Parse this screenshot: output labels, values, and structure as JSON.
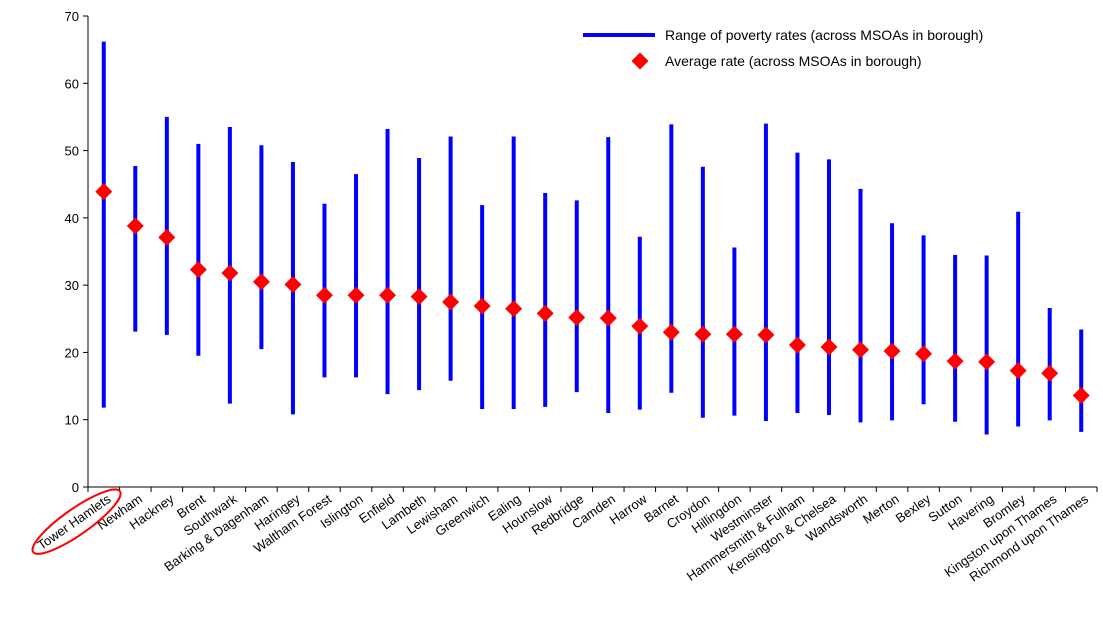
{
  "chart_data": {
    "type": "range-dot",
    "title": "",
    "xlabel": "",
    "ylabel": "",
    "ylim": [
      0,
      70
    ],
    "yticks": [
      0,
      10,
      20,
      30,
      40,
      50,
      60,
      70
    ],
    "grid": false,
    "legend_position": "top-right",
    "categories": [
      "Tower Hamlets",
      "Newham",
      "Hackney",
      "Brent",
      "Southwark",
      "Barking & Dagenham",
      "Haringey",
      "Waltham Forest",
      "Islington",
      "Enfield",
      "Lambeth",
      "Lewisham",
      "Greenwich",
      "Ealing",
      "Hounslow",
      "Redbridge",
      "Camden",
      "Harrow",
      "Barnet",
      "Croydon",
      "Hillingdon",
      "Westminster",
      "Hammersmith & Fulham",
      "Kensington & Chelsea",
      "Wandsworth",
      "Merton",
      "Bexley",
      "Sutton",
      "Havering",
      "Bromley",
      "Kingston upon Thames",
      "Richmond upon Thames"
    ],
    "series": [
      {
        "name": "Range of poverty rates (across MSOAs in borough)",
        "kind": "range",
        "color": "#0000ff",
        "low": [
          11.8,
          23.1,
          22.6,
          19.5,
          12.4,
          20.5,
          10.8,
          16.3,
          16.3,
          13.8,
          14.4,
          15.8,
          11.6,
          11.6,
          11.9,
          14.1,
          11.0,
          11.5,
          14.0,
          10.3,
          10.6,
          9.8,
          11.0,
          10.7,
          9.6,
          9.9,
          12.3,
          9.7,
          7.8,
          9.0,
          9.9,
          8.2
        ],
        "high": [
          66.2,
          47.7,
          55.0,
          51.0,
          53.5,
          50.8,
          48.3,
          42.1,
          46.5,
          53.2,
          48.9,
          52.1,
          41.9,
          52.1,
          43.7,
          42.6,
          52.0,
          37.2,
          53.9,
          47.6,
          35.6,
          54.0,
          49.7,
          48.7,
          44.3,
          39.2,
          37.4,
          34.5,
          34.4,
          40.9,
          26.6,
          23.4
        ]
      },
      {
        "name": "Average rate (across MSOAs in borough)",
        "kind": "point",
        "color": "#ff0000",
        "values": [
          43.9,
          38.8,
          37.1,
          32.3,
          31.8,
          30.5,
          30.1,
          28.5,
          28.5,
          28.5,
          28.3,
          27.5,
          26.9,
          26.5,
          25.8,
          25.2,
          25.1,
          23.9,
          23.0,
          22.7,
          22.7,
          22.6,
          21.1,
          20.8,
          20.4,
          20.2,
          19.8,
          18.7,
          18.6,
          17.3,
          16.9,
          13.6
        ]
      }
    ],
    "highlight": {
      "category": "Tower Hamlets",
      "shape": "ellipse",
      "color": "#ff0000"
    }
  }
}
